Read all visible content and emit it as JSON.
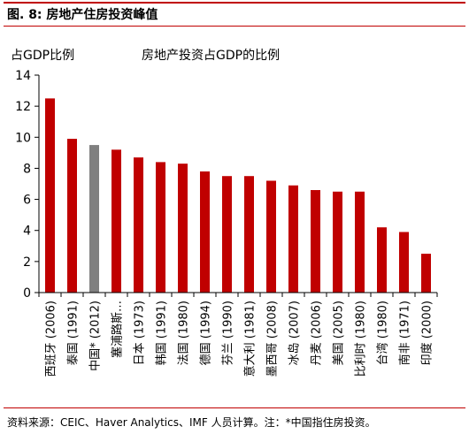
{
  "figure": {
    "title": "图. 8: 房地产住房投资峰值",
    "source": "资料来源：CEIC、Haver Analytics、IMF 人员计算。注：*中国指住房投资。"
  },
  "colors": {
    "accent": "#c00000",
    "bar": "#c00000",
    "highlight_bar": "#808080",
    "axis": "#000000"
  },
  "chart_data": {
    "type": "bar",
    "unit_label": "占GDP比例",
    "series_label": "房地产投资占GDP的比例",
    "categories": [
      "西班牙 (2006)",
      "泰国 (1991)",
      "中国* (2012)",
      "塞浦路斯…",
      "日本 (1973)",
      "韩国 (1991)",
      "法国 (1980)",
      "德国 (1994)",
      "芬兰 (1990)",
      "意大利 (1981)",
      "墨西哥 (2008)",
      "冰岛 (2007)",
      "丹麦 (2006)",
      "美国 (2005)",
      "比利时 (1980)",
      "台湾 (1980)",
      "南非 (1971)",
      "印度 (2000)"
    ],
    "values": [
      12.5,
      9.9,
      9.5,
      9.2,
      8.7,
      8.4,
      8.3,
      7.8,
      7.5,
      7.5,
      7.2,
      6.9,
      6.6,
      6.5,
      6.5,
      4.2,
      3.9,
      2.5
    ],
    "highlight_category": "中国* (2012)",
    "ylim": [
      0,
      14
    ],
    "yticks": [
      0,
      2,
      4,
      6,
      8,
      10,
      12,
      14
    ],
    "grid": false,
    "legend": "none"
  }
}
